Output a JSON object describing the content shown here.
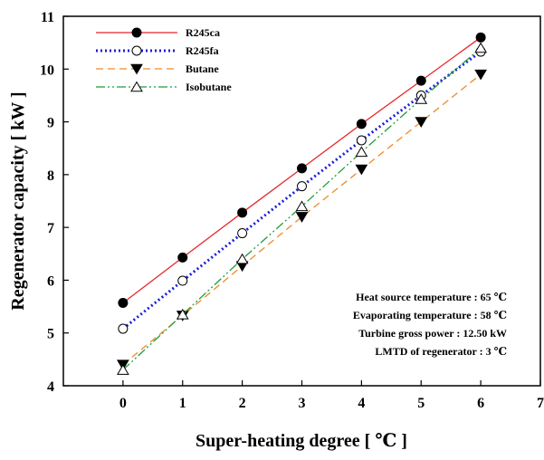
{
  "chart_data": {
    "type": "line",
    "xlabel": "Super-heating degree [ ℃ ]",
    "ylabel": "Regenerator capacity [ kW ]",
    "xlim": [
      -1,
      7
    ],
    "ylim": [
      4,
      11
    ],
    "x_ticks": [
      0,
      1,
      2,
      3,
      4,
      5,
      6,
      7
    ],
    "y_ticks": [
      4,
      5,
      6,
      7,
      8,
      9,
      10,
      11
    ],
    "grid": false,
    "legend_position": "top-left",
    "x": [
      0,
      1,
      2,
      3,
      4,
      5,
      6
    ],
    "series": [
      {
        "name": "R245ca",
        "values": [
          5.57,
          6.43,
          7.28,
          8.12,
          8.96,
          9.78,
          10.6
        ],
        "color": "#e8262a",
        "line": "solid",
        "marker": "filled-circle"
      },
      {
        "name": "R245fa",
        "values": [
          5.08,
          5.99,
          6.89,
          7.78,
          8.65,
          9.5,
          10.33
        ],
        "color": "#1c1fd6",
        "line": "dotted",
        "marker": "open-circle"
      },
      {
        "name": "Butane",
        "values": [
          4.4,
          5.33,
          6.27,
          7.2,
          8.1,
          9.0,
          9.9
        ],
        "color": "#f08a24",
        "line": "dashed",
        "marker": "filled-triangle-down"
      },
      {
        "name": "Isobutane",
        "values": [
          4.3,
          5.35,
          6.4,
          7.4,
          8.43,
          9.43,
          10.4
        ],
        "color": "#1f9c3a",
        "line": "dash-dot",
        "marker": "open-triangle-up"
      }
    ],
    "annotations": [
      "Heat source temperature : 65 ℃",
      "Evaporating temperature : 58 ℃",
      "Turbine gross power : 12.50 kW",
      "LMTD of regenerator : 3 ℃"
    ]
  }
}
